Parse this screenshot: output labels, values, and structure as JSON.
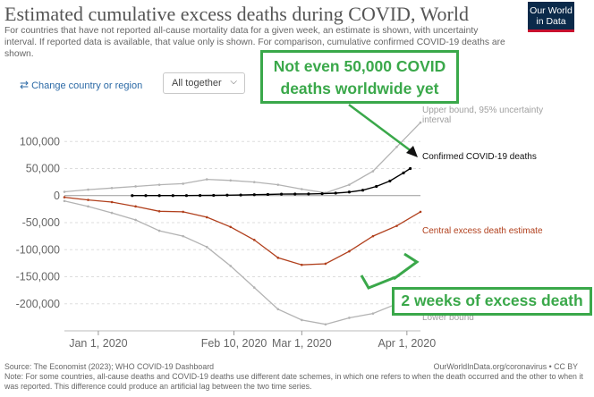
{
  "header": {
    "title": "Estimated cumulative excess deaths during COVID, World",
    "subtitle": "For countries that have not reported all-cause mortality data for a given week, an estimate is shown, with uncertainty interval. If reported data is available, that value only is shown. For comparison, cumulative confirmed COVID-19 deaths are shown.",
    "logo_line1": "Our World",
    "logo_line2": "in Data"
  },
  "controls": {
    "change_country_label": "Change country or region",
    "change_icon": "swap-arrows-icon",
    "display_select_value": "All together",
    "display_select_icon": "chevron-down-icon",
    "link_color": "#2c6aa6"
  },
  "annotations": {
    "top_line1": "Not even 50,000 COVID",
    "top_line2": "deaths worldwide yet",
    "bottom": "2 weeks of excess death",
    "color": "#3aa84a"
  },
  "footer": {
    "source": "Source: The Economist (2023); WHO COVID-19 Dashboard",
    "license": "OurWorldInData.org/coronavirus • CC BY",
    "note": "Note: For some countries, all-cause deaths and COVID-19 deaths use different date schemes, in which one refers to when the death occurred and the other to when it was reported. This difference could produce an artificial lag between the two time series."
  },
  "chart_data": {
    "type": "line",
    "ylim": [
      -250000,
      150000
    ],
    "xlim": [
      "2019-12-22",
      "2020-04-05"
    ],
    "y_ticks": [
      100000,
      50000,
      0,
      -50000,
      -100000,
      -150000,
      -200000
    ],
    "y_tick_labels": [
      "100,000",
      "50,000",
      "0",
      "-50,000",
      "-100,000",
      "-150,000",
      "-200,000"
    ],
    "x_ticks": [
      "2020-01-01",
      "2020-02-10",
      "2020-03-01",
      "2020-04-01"
    ],
    "x_tick_labels": [
      "Jan 1, 2020",
      "Feb 10, 2020",
      "Mar 1, 2020",
      "Apr 1, 2020"
    ],
    "grid": true,
    "series": [
      {
        "name": "Upper bound, 95% uncertainty interval",
        "color": "#b3b3b3",
        "x": [
          "2019-12-22",
          "2019-12-29",
          "2020-01-05",
          "2020-01-12",
          "2020-01-19",
          "2020-01-26",
          "2020-02-02",
          "2020-02-09",
          "2020-02-16",
          "2020-02-23",
          "2020-03-01",
          "2020-03-08",
          "2020-03-15",
          "2020-03-22",
          "2020-03-29",
          "2020-04-05"
        ],
        "values": [
          7000,
          11000,
          14000,
          17000,
          20000,
          22000,
          30000,
          28000,
          25000,
          20000,
          12000,
          5000,
          20000,
          45000,
          90000,
          135000
        ]
      },
      {
        "name": "Central excess death estimate",
        "color": "#b1401d",
        "x": [
          "2019-12-22",
          "2019-12-29",
          "2020-01-05",
          "2020-01-12",
          "2020-01-19",
          "2020-01-26",
          "2020-02-02",
          "2020-02-09",
          "2020-02-16",
          "2020-02-23",
          "2020-03-01",
          "2020-03-08",
          "2020-03-15",
          "2020-03-22",
          "2020-03-29",
          "2020-04-05"
        ],
        "values": [
          -3000,
          -8000,
          -12000,
          -20000,
          -29000,
          -30000,
          -40000,
          -58000,
          -82000,
          -115000,
          -128000,
          -126000,
          -103000,
          -75000,
          -56000,
          -30000
        ]
      },
      {
        "name": "Lower bound",
        "color": "#b3b3b3",
        "x": [
          "2019-12-22",
          "2019-12-29",
          "2020-01-05",
          "2020-01-12",
          "2020-01-19",
          "2020-01-26",
          "2020-02-02",
          "2020-02-09",
          "2020-02-16",
          "2020-02-23",
          "2020-03-01",
          "2020-03-08",
          "2020-03-15",
          "2020-03-22",
          "2020-03-29",
          "2020-04-05"
        ],
        "values": [
          -10000,
          -20000,
          -32000,
          -45000,
          -65000,
          -75000,
          -95000,
          -130000,
          -170000,
          -210000,
          -230000,
          -238000,
          -226000,
          -218000,
          -200000,
          -185000
        ]
      },
      {
        "name": "Confirmed COVID-19 deaths",
        "color": "#000000",
        "x": [
          "2020-01-11",
          "2020-01-15",
          "2020-01-19",
          "2020-01-23",
          "2020-01-27",
          "2020-01-31",
          "2020-02-04",
          "2020-02-08",
          "2020-02-12",
          "2020-02-16",
          "2020-02-20",
          "2020-02-24",
          "2020-02-28",
          "2020-03-03",
          "2020-03-07",
          "2020-03-11",
          "2020-03-15",
          "2020-03-19",
          "2020-03-23",
          "2020-03-27",
          "2020-03-31",
          "2020-04-02"
        ],
        "values": [
          1,
          1,
          3,
          17,
          80,
          213,
          490,
          800,
          1120,
          1670,
          2130,
          2700,
          2860,
          3120,
          3560,
          4620,
          6600,
          10000,
          17000,
          27000,
          42000,
          50000
        ]
      }
    ]
  }
}
